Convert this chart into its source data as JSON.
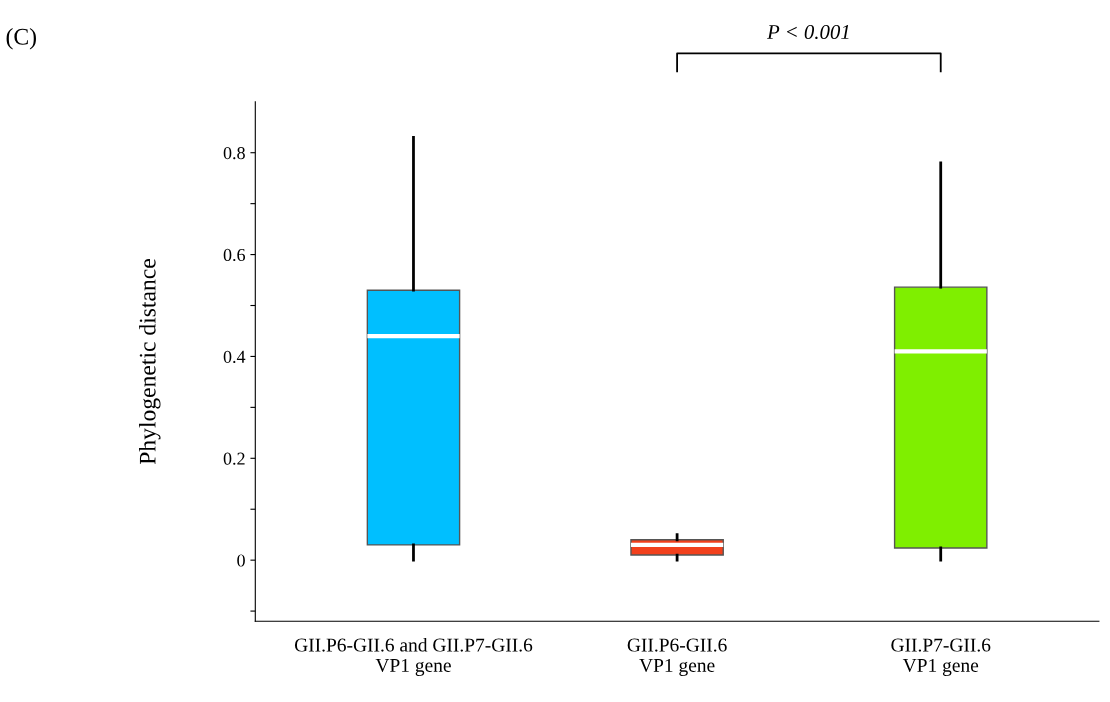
{
  "chart_data": {
    "type": "box",
    "title": "(C)",
    "ylabel": "Phylogenetic distance",
    "categories": [
      "GII.P6-GII.6 and GII.P7-GII.6\nVP1 gene",
      "GII.P6-GII.6\nVP1 gene",
      "GII.P7-GII.6\nVP1 gene"
    ],
    "colors": [
      "#00bfff",
      "#f2401c",
      "#7fef00"
    ],
    "boxes": [
      {
        "low": 0,
        "q1": 0.03,
        "median": 0.44,
        "q3": 0.53,
        "high": 0.83
      },
      {
        "low": 0,
        "q1": 0.01,
        "median": 0.03,
        "q3": 0.04,
        "high": 0.05
      },
      {
        "low": 0,
        "q1": 0.024,
        "median": 0.41,
        "q3": 0.536,
        "high": 0.78
      }
    ],
    "ylim": [
      -0.12,
      0.9
    ],
    "yticks": [
      {
        "value": -0.1,
        "label": null
      },
      0,
      {
        "value": 0.1,
        "label": null
      },
      0.2,
      {
        "value": 0.3,
        "label": null
      },
      0.4,
      {
        "value": 0.5,
        "label": null
      },
      0.6,
      {
        "value": 0.7,
        "label": null
      },
      0.8
    ],
    "annotations": [
      "P < 0.001"
    ],
    "grid": false,
    "legend": false
  }
}
